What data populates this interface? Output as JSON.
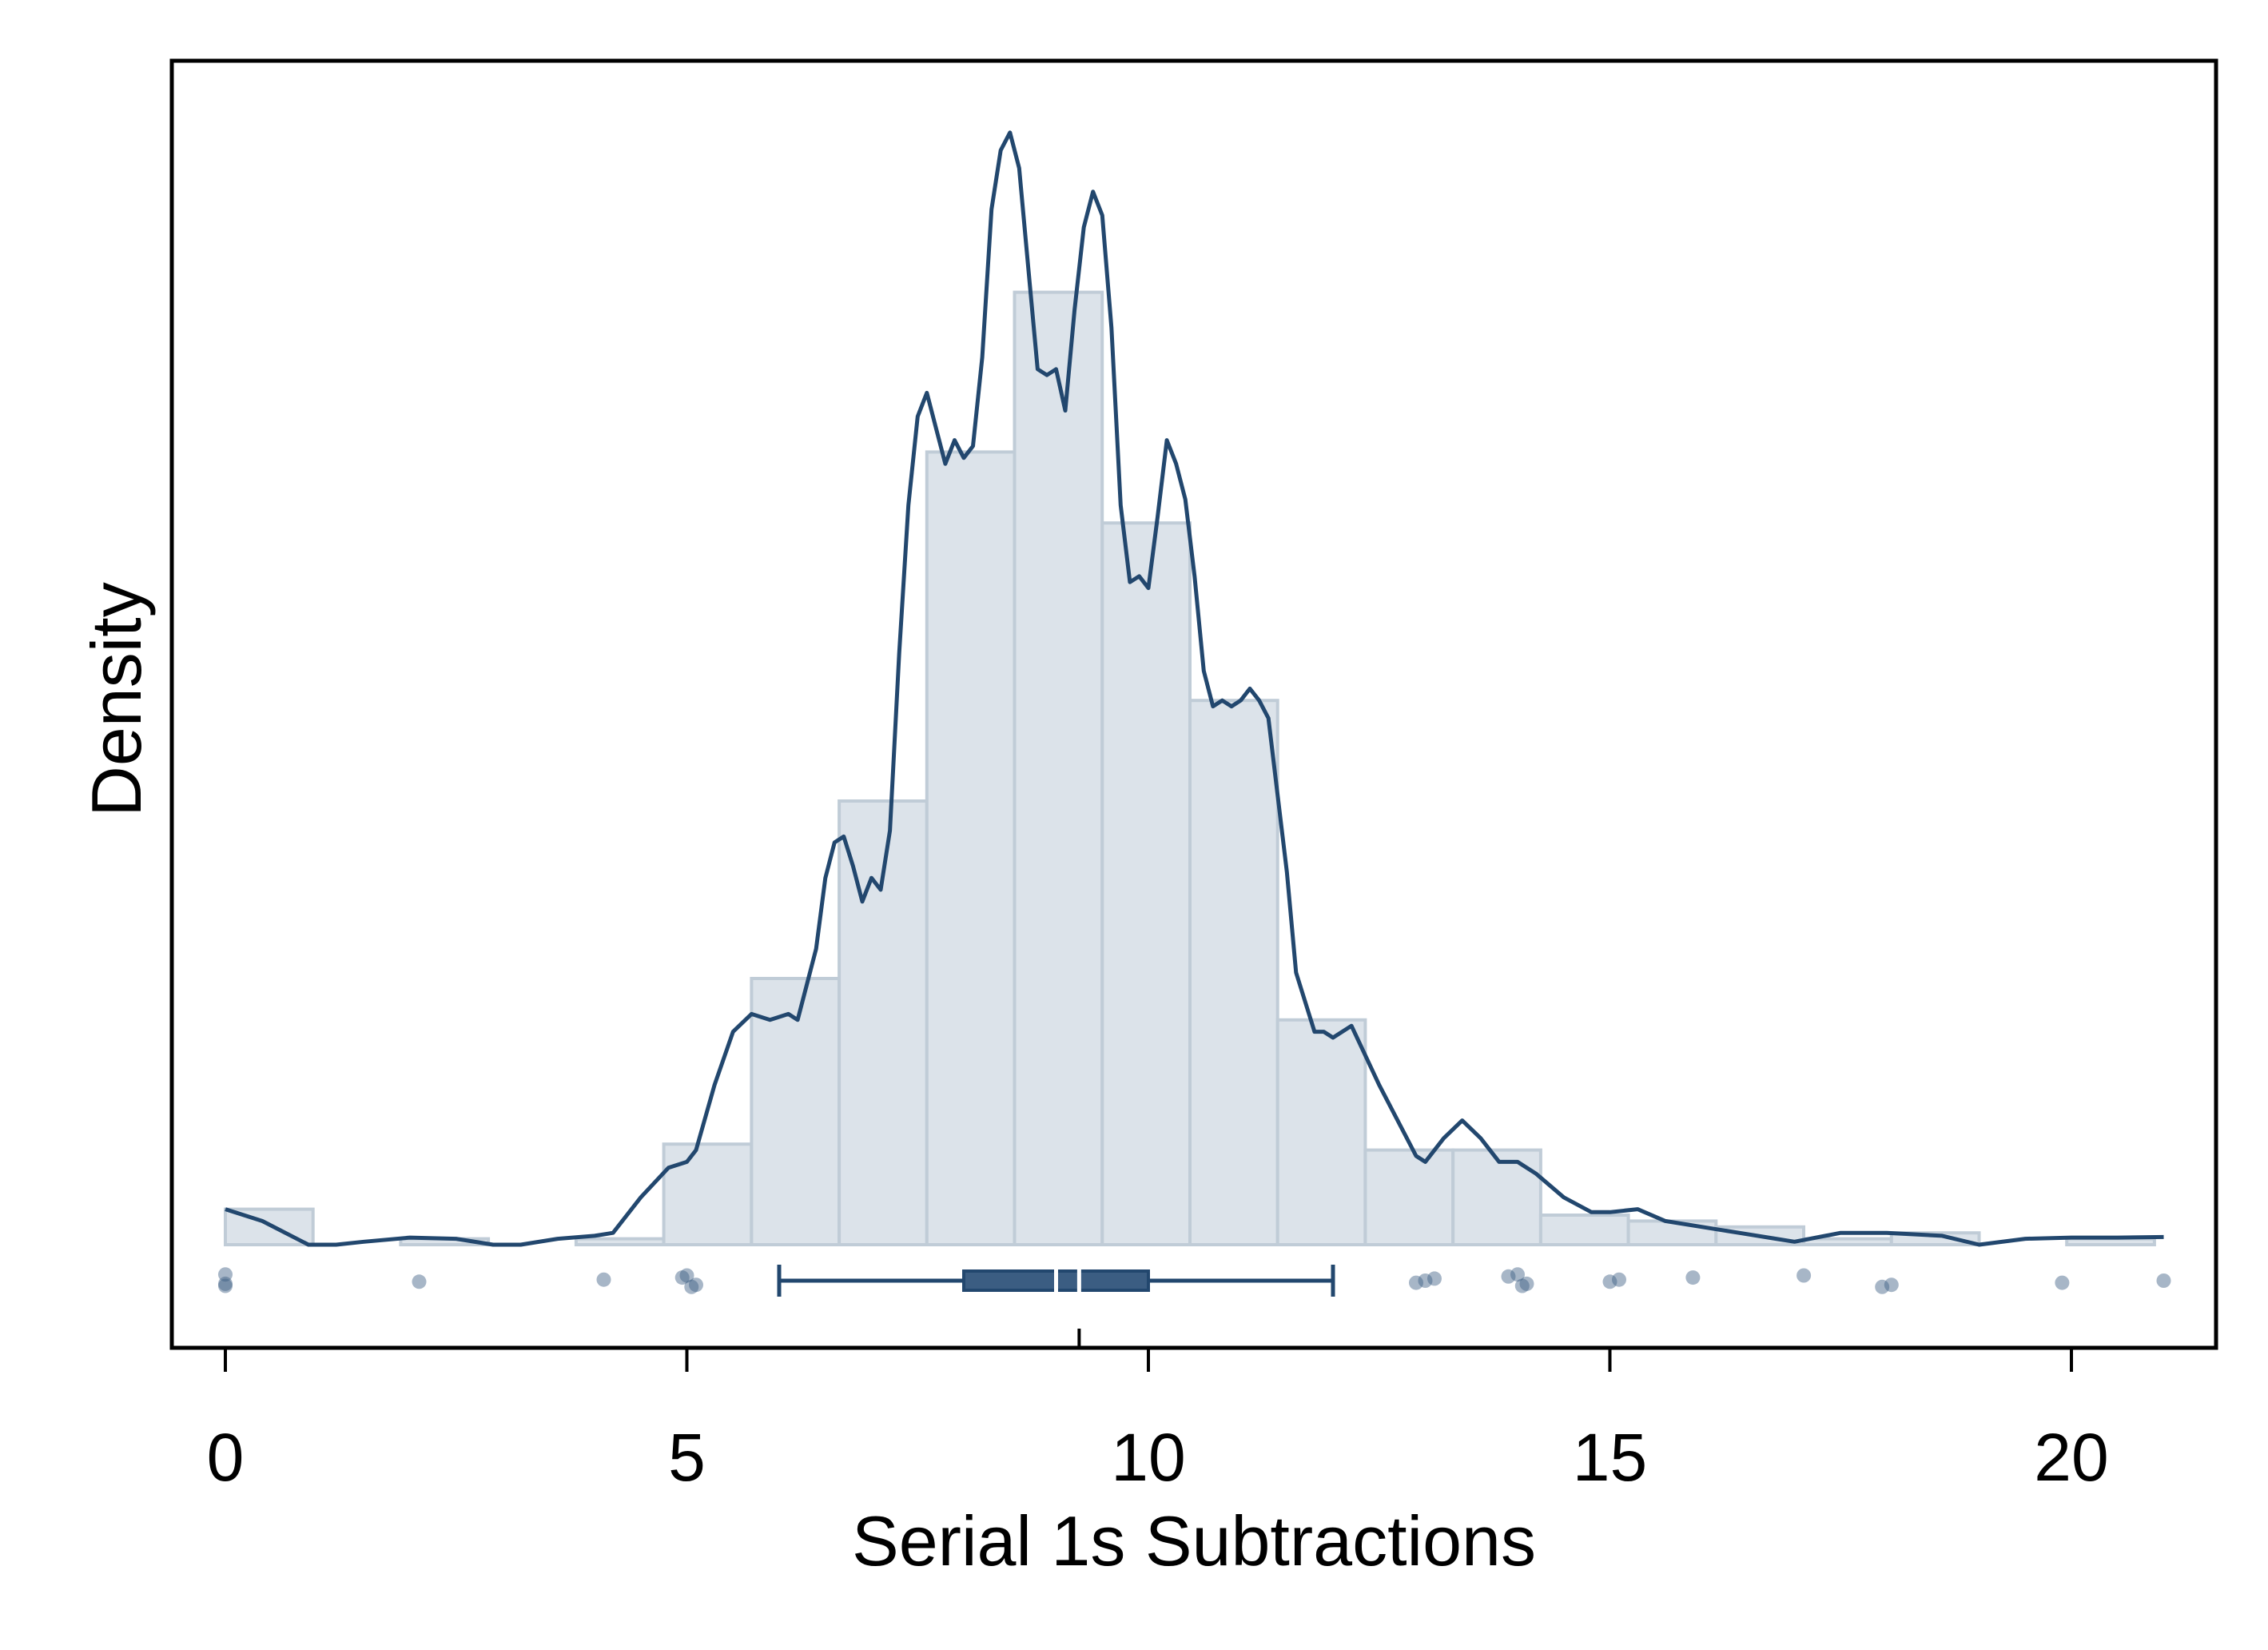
{
  "chart_data": {
    "type": "histogram",
    "title": "",
    "xlabel": "Serial 1s Subtractions",
    "ylabel": "Density",
    "xlim": [
      -0.6,
      21.6
    ],
    "ylim": [
      -0.021,
      0.188
    ],
    "xticks": [
      "0",
      "5",
      "10",
      "15",
      "20"
    ],
    "xtick_values": [
      0,
      5,
      10,
      15,
      20
    ],
    "y_ticks_shown": false,
    "grid": false,
    "legend": "none",
    "colors": {
      "bar_fill": "#dce3ea",
      "bar_edge": "#c0ccd7",
      "line": "#22476e",
      "box_fill": "#3b5d82",
      "points": "#3b5d82"
    },
    "histogram": {
      "bin_width": 0.95,
      "bins": [
        {
          "x0": 0.0,
          "x1": 0.95,
          "density": 0.006
        },
        {
          "x0": 1.9,
          "x1": 2.85,
          "density": 0.001
        },
        {
          "x0": 3.8,
          "x1": 4.75,
          "density": 0.001
        },
        {
          "x0": 4.75,
          "x1": 5.7,
          "density": 0.017
        },
        {
          "x0": 5.7,
          "x1": 6.65,
          "density": 0.045
        },
        {
          "x0": 6.65,
          "x1": 7.6,
          "density": 0.075
        },
        {
          "x0": 7.6,
          "x1": 8.55,
          "density": 0.134
        },
        {
          "x0": 8.55,
          "x1": 9.5,
          "density": 0.161
        },
        {
          "x0": 9.5,
          "x1": 10.45,
          "density": 0.122
        },
        {
          "x0": 10.45,
          "x1": 11.4,
          "density": 0.092
        },
        {
          "x0": 11.4,
          "x1": 12.35,
          "density": 0.038
        },
        {
          "x0": 12.35,
          "x1": 13.3,
          "density": 0.016
        },
        {
          "x0": 13.3,
          "x1": 14.25,
          "density": 0.016
        },
        {
          "x0": 14.25,
          "x1": 15.2,
          "density": 0.005
        },
        {
          "x0": 15.2,
          "x1": 16.15,
          "density": 0.004
        },
        {
          "x0": 16.15,
          "x1": 17.1,
          "density": 0.003
        },
        {
          "x0": 17.1,
          "x1": 18.05,
          "density": 0.001
        },
        {
          "x0": 18.05,
          "x1": 19.0,
          "density": 0.002
        },
        {
          "x0": 19.95,
          "x1": 20.9,
          "density": 0.001
        }
      ]
    },
    "density_curve": {
      "x": [
        0,
        0.4,
        0.9,
        1.2,
        1.5,
        2.0,
        2.5,
        2.9,
        3.2,
        3.6,
        4.0,
        4.2,
        4.5,
        4.8,
        5.0,
        5.1,
        5.3,
        5.5,
        5.7,
        5.9,
        6.1,
        6.2,
        6.4,
        6.5,
        6.6,
        6.7,
        6.8,
        6.9,
        7.0,
        7.1,
        7.2,
        7.3,
        7.4,
        7.5,
        7.6,
        7.7,
        7.8,
        7.9,
        8.0,
        8.1,
        8.2,
        8.3,
        8.4,
        8.5,
        8.6,
        8.7,
        8.8,
        8.9,
        9.0,
        9.1,
        9.2,
        9.3,
        9.4,
        9.5,
        9.6,
        9.7,
        9.8,
        9.9,
        10.0,
        10.1,
        10.2,
        10.3,
        10.4,
        10.5,
        10.6,
        10.7,
        10.8,
        10.9,
        11.0,
        11.1,
        11.2,
        11.3,
        11.4,
        11.5,
        11.6,
        11.8,
        11.9,
        12.0,
        12.2,
        12.5,
        12.9,
        13.0,
        13.2,
        13.4,
        13.6,
        13.8,
        14.0,
        14.2,
        14.5,
        14.8,
        15.0,
        15.3,
        15.6,
        16.0,
        16.4,
        16.8,
        17.0,
        17.5,
        18.0,
        18.6,
        19.0,
        19.5,
        20.0,
        20.5,
        21.0
      ],
      "y": [
        0.006,
        0.004,
        0.0,
        0.0,
        0.0005,
        0.0012,
        0.001,
        0.0,
        0.0,
        0.001,
        0.0015,
        0.002,
        0.008,
        0.013,
        0.014,
        0.016,
        0.027,
        0.036,
        0.039,
        0.038,
        0.039,
        0.038,
        0.05,
        0.062,
        0.068,
        0.069,
        0.064,
        0.058,
        0.062,
        0.06,
        0.07,
        0.1,
        0.125,
        0.14,
        0.144,
        0.138,
        0.132,
        0.136,
        0.133,
        0.135,
        0.15,
        0.175,
        0.185,
        0.188,
        0.182,
        0.165,
        0.148,
        0.147,
        0.148,
        0.141,
        0.158,
        0.172,
        0.178,
        0.174,
        0.155,
        0.125,
        0.112,
        0.113,
        0.111,
        0.123,
        0.136,
        0.132,
        0.126,
        0.113,
        0.097,
        0.091,
        0.092,
        0.091,
        0.092,
        0.094,
        0.092,
        0.089,
        0.076,
        0.063,
        0.046,
        0.036,
        0.036,
        0.035,
        0.037,
        0.027,
        0.015,
        0.014,
        0.018,
        0.021,
        0.018,
        0.014,
        0.014,
        0.012,
        0.008,
        0.0055,
        0.0055,
        0.006,
        0.004,
        0.003,
        0.002,
        0.001,
        0.0005,
        0.002,
        0.002,
        0.0015,
        0.0,
        0.001,
        0.0012,
        0.0012,
        0.0013
      ]
    },
    "boxplot": {
      "whisker_low": 6,
      "q1": 8,
      "median": 9,
      "mean": 9.25,
      "q3": 10,
      "whisker_high": 12,
      "mean_tick": 9.25
    },
    "rug_points": [
      0,
      0,
      0,
      2.1,
      4.1,
      4.95,
      5.0,
      5.05,
      5.1,
      12.9,
      13.0,
      13.1,
      13.9,
      14.0,
      14.05,
      14.1,
      15.0,
      15.1,
      15.9,
      17.1,
      17.95,
      18.05,
      19.9,
      21.0
    ]
  }
}
